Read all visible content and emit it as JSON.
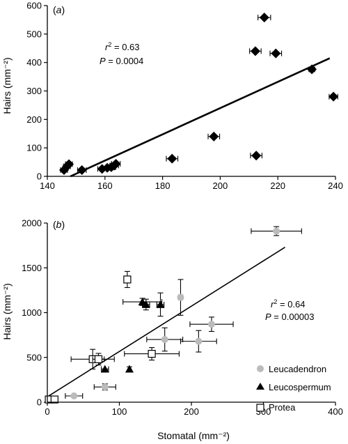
{
  "chart_data": [
    {
      "type": "scatter",
      "panel_label": "a",
      "xlabel": "",
      "ylabel": "Hairs (mm⁻²)",
      "xlim": [
        140,
        240
      ],
      "ylim": [
        0,
        600
      ],
      "xticks": [
        140,
        160,
        180,
        200,
        220,
        240
      ],
      "yticks": [
        0,
        100,
        200,
        300,
        400,
        500,
        600
      ],
      "stats": {
        "r2": "0.63",
        "p": "0.0004"
      },
      "marker": "filled-diamond",
      "points": [
        {
          "x": 145.8,
          "y": 22,
          "xerr": 1.2
        },
        {
          "x": 146.8,
          "y": 35,
          "xerr": 1.2
        },
        {
          "x": 147.5,
          "y": 43,
          "xerr": 1.2
        },
        {
          "x": 152.0,
          "y": 22,
          "xerr": 1.5
        },
        {
          "x": 159.0,
          "y": 26,
          "xerr": 1.5
        },
        {
          "x": 160.8,
          "y": 30,
          "xerr": 1.5
        },
        {
          "x": 162.2,
          "y": 32,
          "xerr": 1.5
        },
        {
          "x": 163.2,
          "y": 38,
          "xerr": 1.5
        },
        {
          "x": 163.8,
          "y": 44,
          "xerr": 1.5
        },
        {
          "x": 183.3,
          "y": 62,
          "xerr": 2.0
        },
        {
          "x": 197.8,
          "y": 140,
          "xerr": 2.0
        },
        {
          "x": 212.5,
          "y": 73,
          "xerr": 2.0
        },
        {
          "x": 212.2,
          "y": 440,
          "xerr": 2.0
        },
        {
          "x": 215.3,
          "y": 558,
          "xerr": 2.2
        },
        {
          "x": 219.3,
          "y": 432,
          "xerr": 2.0
        },
        {
          "x": 231.8,
          "y": 376,
          "xerr": 1.0
        },
        {
          "x": 239.3,
          "y": 280,
          "xerr": 1.5
        }
      ],
      "trendline": {
        "x0": 148.0,
        "y0": 0,
        "x1": 238.0,
        "y1": 415
      }
    },
    {
      "type": "scatter",
      "panel_label": "b",
      "xlabel": "Stomatal (mm⁻²)",
      "ylabel": "Hairs (mm⁻²)",
      "xlim": [
        0,
        400
      ],
      "ylim": [
        0,
        2000
      ],
      "xticks": [
        0,
        100,
        200,
        300,
        400
      ],
      "yticks": [
        0,
        500,
        1000,
        1500,
        2000
      ],
      "stats": {
        "r2": "0.64",
        "p": "0.00003"
      },
      "series": [
        {
          "name": "Leucadendron",
          "marker": "circle",
          "color": "#bbbbbb",
          "points": [
            {
              "x": 37,
              "y": 70,
              "xerr": 12,
              "yerr": 0
            },
            {
              "x": 80,
              "y": 170,
              "xerr": 15,
              "yerr": 35
            },
            {
              "x": 163,
              "y": 700,
              "xerr": 25,
              "yerr": 130
            },
            {
              "x": 185,
              "y": 1170,
              "xerr": 3,
              "yerr": 200
            },
            {
              "x": 210,
              "y": 680,
              "xerr": 25,
              "yerr": 120
            },
            {
              "x": 228,
              "y": 870,
              "xerr": 30,
              "yerr": 80
            },
            {
              "x": 318,
              "y": 1910,
              "xerr": 35,
              "yerr": 50
            }
          ]
        },
        {
          "name": "Leucospermum",
          "marker": "triangle",
          "color": "#000000",
          "points": [
            {
              "x": 80,
              "y": 370,
              "xerr": 5,
              "yerr": 0
            },
            {
              "x": 114,
              "y": 370,
              "xerr": 0,
              "yerr": 25
            },
            {
              "x": 132,
              "y": 1120,
              "xerr": 27,
              "yerr": 40
            },
            {
              "x": 137,
              "y": 1090,
              "xerr": 5,
              "yerr": 60
            },
            {
              "x": 157,
              "y": 1090,
              "xerr": 5,
              "yerr": 130
            }
          ]
        },
        {
          "name": "Protea",
          "marker": "open-square",
          "color": "#ffffff",
          "points": [
            {
              "x": 2,
              "y": 30,
              "xerr": 0,
              "yerr": 0
            },
            {
              "x": 10,
              "y": 30,
              "xerr": 0,
              "yerr": 0
            },
            {
              "x": 63,
              "y": 480,
              "xerr": 30,
              "yerr": 110
            },
            {
              "x": 71,
              "y": 480,
              "xerr": 8,
              "yerr": 65
            },
            {
              "x": 145,
              "y": 540,
              "xerr": 38,
              "yerr": 70
            },
            {
              "x": 111,
              "y": 1370,
              "xerr": 4,
              "yerr": 90
            }
          ]
        }
      ],
      "legend_position": "bottom-right",
      "trendline": {
        "x0": 0,
        "y0": 60,
        "x1": 330,
        "y1": 1730
      }
    }
  ]
}
